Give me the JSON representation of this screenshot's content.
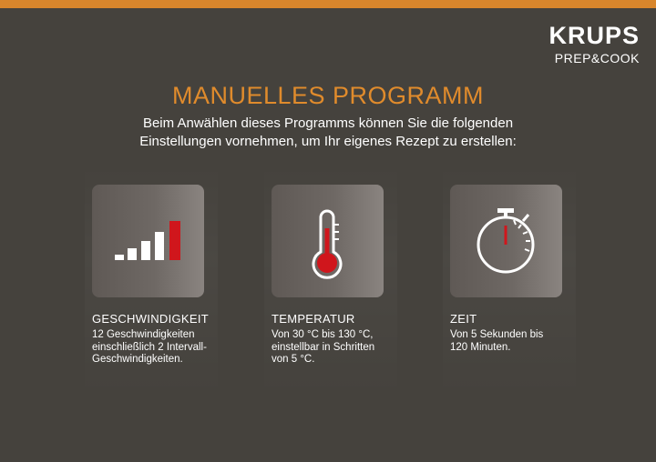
{
  "brand": {
    "name": "KRUPS",
    "sub": "PREP&COOK"
  },
  "title": "MANUELLES PROGRAMM",
  "subtitle_lines": [
    "Beim Anwählen dieses Programms können Sie die folgenden",
    "Einstellungen vornehmen, um Ihr eigenes Rezept zu erstellen:"
  ],
  "features": [
    {
      "icon": "speed-bars-icon",
      "title": "GESCHWINDIGKEIT",
      "desc_lines": [
        "12 Geschwindigkeiten",
        "einschließlich 2 Intervall-",
        "Geschwindigkeiten."
      ]
    },
    {
      "icon": "thermometer-icon",
      "title": "TEMPERATUR",
      "desc_lines": [
        "Von 30 °C bis 130 °C,",
        "einstellbar in Schritten",
        "von 5 °C."
      ]
    },
    {
      "icon": "stopwatch-icon",
      "title": "ZEIT",
      "desc_lines": [
        "Von 5 Sekunden bis",
        "120 Minuten."
      ]
    }
  ],
  "colors": {
    "background": "#45423d",
    "accent": "#e08b2c",
    "topbar": "#d8862c",
    "red": "#d0161c"
  }
}
